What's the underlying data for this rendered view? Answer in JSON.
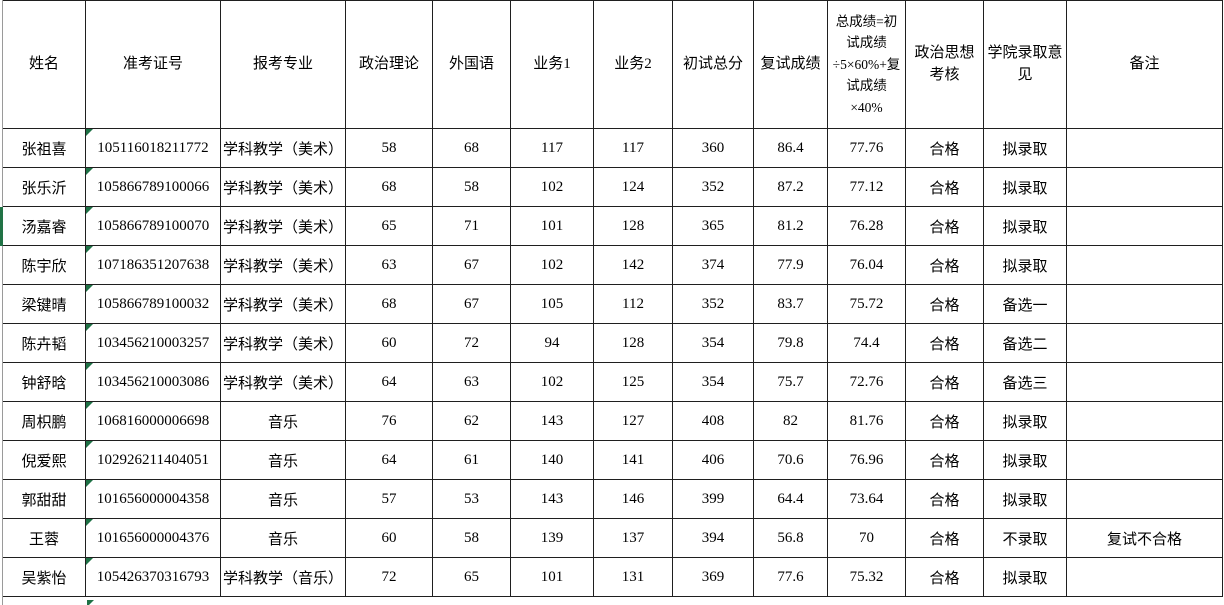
{
  "colors": {
    "grid_line": "#1f1f1f",
    "error_triangle_green": "#1e7145",
    "selection_green": "#217346",
    "background": "#ffffff",
    "text": "#000000"
  },
  "selection": {
    "active_row_index": 2,
    "active_col_index": 0
  },
  "table": {
    "columns": [
      "姓名",
      "准考证号",
      "报考专业",
      "政治理论",
      "外国语",
      "业务1",
      "业务2",
      "初试总分",
      "复试成绩",
      "总成绩=初试成绩÷5×60%+复试成绩×40%",
      "政治思想考核",
      "学院录取意见",
      "备注"
    ],
    "rows": [
      [
        "张祖喜",
        "105116018211772",
        "学科教学（美术）",
        "58",
        "68",
        "117",
        "117",
        "360",
        "86.4",
        "77.76",
        "合格",
        "拟录取",
        ""
      ],
      [
        "张乐沂",
        "105866789100066",
        "学科教学（美术）",
        "68",
        "58",
        "102",
        "124",
        "352",
        "87.2",
        "77.12",
        "合格",
        "拟录取",
        ""
      ],
      [
        "汤嘉睿",
        "105866789100070",
        "学科教学（美术）",
        "65",
        "71",
        "101",
        "128",
        "365",
        "81.2",
        "76.28",
        "合格",
        "拟录取",
        ""
      ],
      [
        "陈宇欣",
        "107186351207638",
        "学科教学（美术）",
        "63",
        "67",
        "102",
        "142",
        "374",
        "77.9",
        "76.04",
        "合格",
        "拟录取",
        ""
      ],
      [
        "梁键晴",
        "105866789100032",
        "学科教学（美术）",
        "68",
        "67",
        "105",
        "112",
        "352",
        "83.7",
        "75.72",
        "合格",
        "备选一",
        ""
      ],
      [
        "陈卉韬",
        "103456210003257",
        "学科教学（美术）",
        "60",
        "72",
        "94",
        "128",
        "354",
        "79.8",
        "74.4",
        "合格",
        "备选二",
        ""
      ],
      [
        "钟舒晗",
        "103456210003086",
        "学科教学（美术）",
        "64",
        "63",
        "102",
        "125",
        "354",
        "75.7",
        "72.76",
        "合格",
        "备选三",
        ""
      ],
      [
        "周枳鹏",
        "106816000006698",
        "音乐",
        "76",
        "62",
        "143",
        "127",
        "408",
        "82",
        "81.76",
        "合格",
        "拟录取",
        ""
      ],
      [
        "倪爱熙",
        "102926211404051",
        "音乐",
        "64",
        "61",
        "140",
        "141",
        "406",
        "70.6",
        "76.96",
        "合格",
        "拟录取",
        ""
      ],
      [
        "郭甜甜",
        "101656000004358",
        "音乐",
        "57",
        "53",
        "143",
        "146",
        "399",
        "64.4",
        "73.64",
        "合格",
        "拟录取",
        ""
      ],
      [
        "王蓉",
        "101656000004376",
        "音乐",
        "60",
        "58",
        "139",
        "137",
        "394",
        "56.8",
        "70",
        "合格",
        "不录取",
        "复试不合格"
      ],
      [
        "吴紫怡",
        "105426370316793",
        "学科教学（音乐）",
        "72",
        "65",
        "101",
        "131",
        "369",
        "77.6",
        "75.32",
        "合格",
        "拟录取",
        ""
      ]
    ]
  }
}
